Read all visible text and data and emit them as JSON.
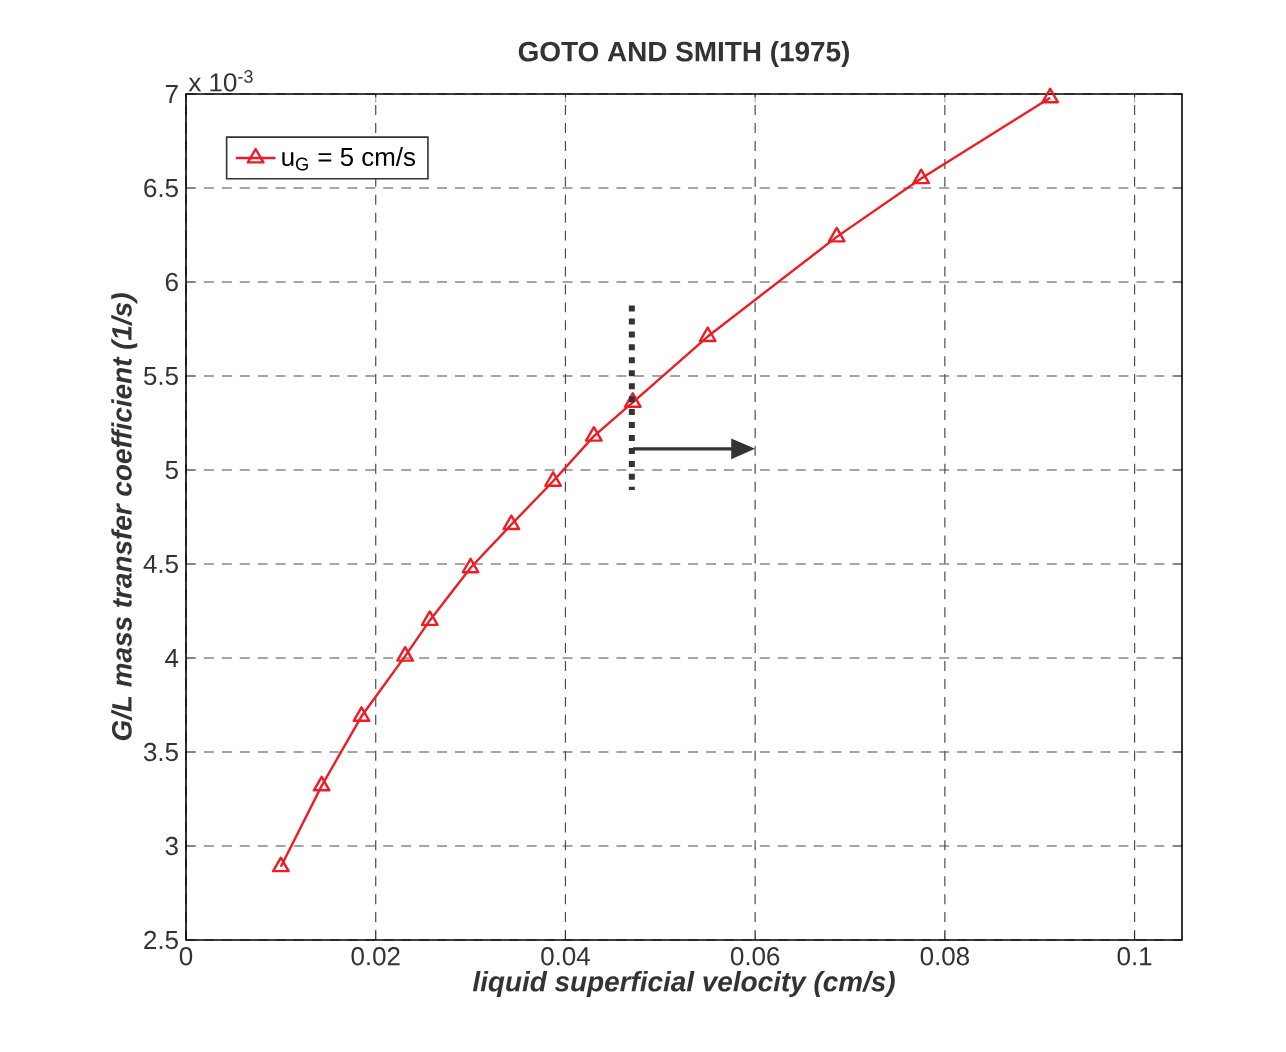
{
  "chart_data": {
    "type": "line",
    "title": "GOTO AND SMITH (1975)",
    "xlabel": "liquid superficial velocity (cm/s)",
    "ylabel": "G/L mass transfer coefficient (1/s)",
    "annotations": [
      "x 10$^{-3}$"
    ],
    "x": [
      0.01,
      0.0143,
      0.0185,
      0.0231,
      0.0257,
      0.03,
      0.0343,
      0.0387,
      0.043,
      0.0471,
      0.055,
      0.0686,
      0.0775,
      0.0911
    ],
    "series": [
      {
        "name": "u$_{G}$ = 5 cm/s",
        "color": "#ee1c25",
        "values": [
          2.89,
          3.32,
          3.69,
          4.01,
          4.2,
          4.48,
          4.71,
          4.94,
          5.18,
          5.36,
          5.71,
          6.24,
          6.55,
          6.98
        ]
      }
    ],
    "xlim": [
      0,
      0.105
    ],
    "ylim": [
      2.5,
      7
    ],
    "xticks": [
      0,
      0.02,
      0.04,
      0.06,
      0.08,
      0.1
    ],
    "yticks": [
      2.5,
      3,
      3.5,
      4,
      4.5,
      5,
      5.5,
      6,
      6.5,
      7
    ],
    "ref_lines": [
      {
        "axis": "x",
        "value": 0.047,
        "color": "#333333",
        "line_style": "dotted"
      }
    ],
    "grid": true,
    "legend": "top left",
    "marker": "triangle",
    "line_style": "solid"
  }
}
